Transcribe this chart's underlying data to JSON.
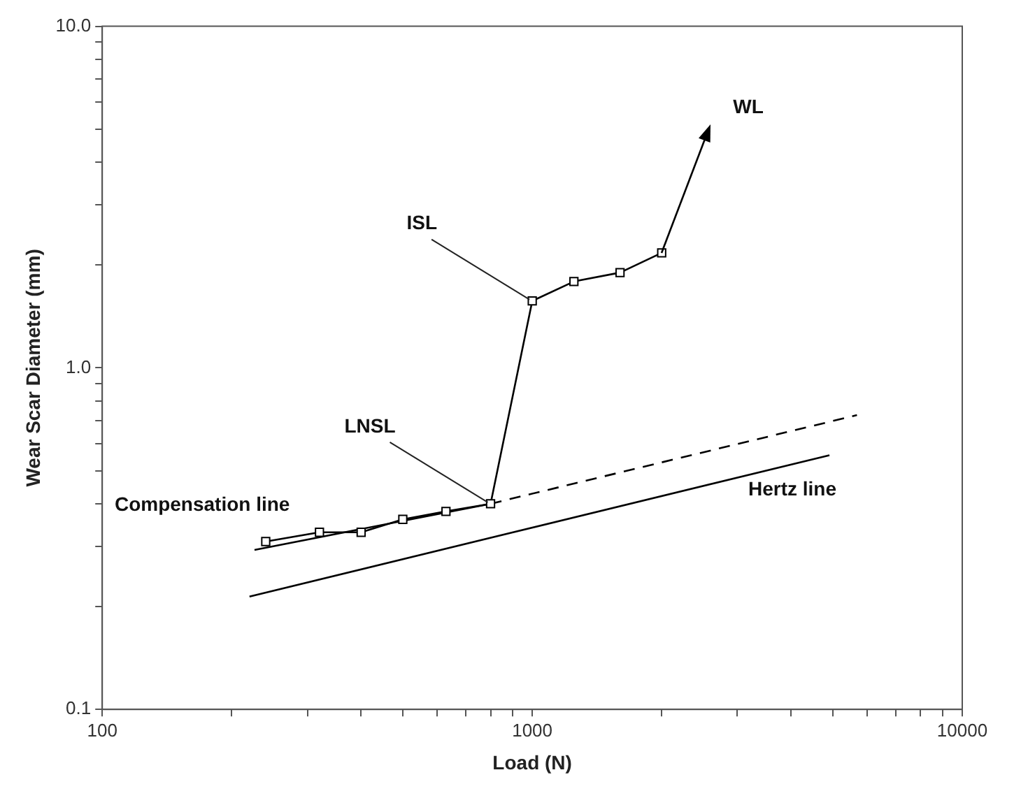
{
  "chart_data": {
    "type": "line",
    "xlabel": "Load (N)",
    "ylabel": "Wear Scar Diameter (mm)",
    "log": "xy",
    "grid": false,
    "legend": false,
    "xlim": [
      100,
      10000
    ],
    "ylim": [
      0.1,
      10
    ],
    "xticks": [
      100,
      {
        "value": 200,
        "label": null
      },
      {
        "value": 300,
        "label": null
      },
      {
        "value": 400,
        "label": null
      },
      {
        "value": 500,
        "label": null
      },
      {
        "value": 600,
        "label": null
      },
      {
        "value": 700,
        "label": null
      },
      {
        "value": 800,
        "label": null
      },
      {
        "value": 900,
        "label": null
      },
      1000,
      {
        "value": 2000,
        "label": null
      },
      {
        "value": 3000,
        "label": null
      },
      {
        "value": 4000,
        "label": null
      },
      {
        "value": 5000,
        "label": null
      },
      {
        "value": 6000,
        "label": null
      },
      {
        "value": 7000,
        "label": null
      },
      {
        "value": 8000,
        "label": null
      },
      {
        "value": 9000,
        "label": null
      },
      10000
    ],
    "yticks": [
      {
        "value": 0.1,
        "label": "0.1"
      },
      {
        "value": 0.2,
        "label": null
      },
      {
        "value": 0.3,
        "label": null
      },
      {
        "value": 0.4,
        "label": null
      },
      {
        "value": 0.5,
        "label": null
      },
      {
        "value": 0.6,
        "label": null
      },
      {
        "value": 0.7,
        "label": null
      },
      {
        "value": 0.8,
        "label": null
      },
      {
        "value": 0.9,
        "label": null
      },
      {
        "value": 1,
        "label": "1.0"
      },
      {
        "value": 2,
        "label": null
      },
      {
        "value": 3,
        "label": null
      },
      {
        "value": 4,
        "label": null
      },
      {
        "value": 5,
        "label": null
      },
      {
        "value": 6,
        "label": null
      },
      {
        "value": 7,
        "label": null
      },
      {
        "value": 8,
        "label": null
      },
      {
        "value": 9,
        "label": null
      },
      {
        "value": 10,
        "label": "10.0"
      }
    ],
    "series": [
      {
        "color": "#000000",
        "marker": "square",
        "line_style": "solid",
        "x": [
          240,
          320,
          400,
          500,
          630,
          800,
          1000,
          1250,
          1600,
          2000
        ],
        "values": [
          0.31,
          0.33,
          0.33,
          0.36,
          0.38,
          0.4,
          1.57,
          1.79,
          1.9,
          2.17
        ]
      },
      {
        "name": "Compensation line",
        "color": "#000000",
        "marker": "none",
        "line_style": "solid",
        "x": [
          226,
          800
        ],
        "values": [
          0.293,
          0.4
        ]
      },
      {
        "color": "#000000",
        "marker": "none",
        "line_style": "dashed",
        "x": [
          800,
          5690
        ],
        "values": [
          0.4,
          0.727
        ]
      },
      {
        "name": "Hertz line",
        "color": "#000000",
        "marker": "none",
        "line_style": "solid",
        "x": [
          220,
          4910
        ],
        "values": [
          0.214,
          0.555
        ]
      }
    ],
    "annotations": [
      {
        "text": "ISL",
        "x": 1000,
        "y": 1.57
      },
      {
        "text": "LNSL",
        "x": 800,
        "y": 0.4
      },
      "WL"
    ]
  }
}
